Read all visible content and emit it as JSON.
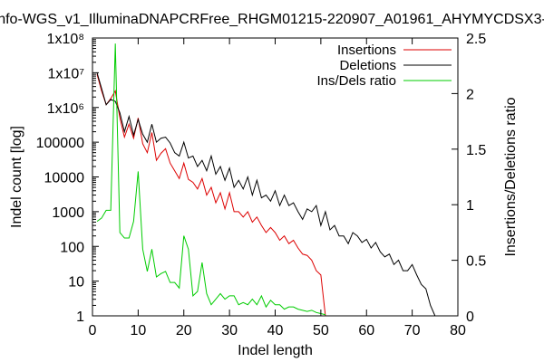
{
  "chart_data": {
    "type": "line",
    "title": "nfo-WGS_v1_IlluminaDNAPCRFree_RHGM01215-220907_A01961_AHYMYCDSX3-",
    "xlabel": "Indel length",
    "ylabel": "Indel count [log]",
    "y2label": "Insertions/Deletions ratio",
    "xlim": [
      0,
      80
    ],
    "ylim": [
      1,
      100000000
    ],
    "y2lim": [
      0,
      2.5
    ],
    "yscale": "log",
    "grid": false,
    "legend_position": "top-right",
    "x_ticks": [
      0,
      10,
      20,
      30,
      40,
      50,
      60,
      70,
      80
    ],
    "x_tick_labels": [
      "0",
      "10",
      "20",
      "30",
      "40",
      "50",
      "60",
      "70",
      "80"
    ],
    "y_ticks": [
      1,
      10,
      100,
      1000,
      10000,
      100000,
      1000000,
      10000000,
      100000000
    ],
    "y_tick_labels": [
      "1",
      "10",
      "100",
      "1000",
      "10000",
      "100000",
      "1x10⁶",
      "1x10⁷",
      "1x10⁸"
    ],
    "y2_ticks": [
      0,
      0.5,
      1,
      1.5,
      2,
      2.5
    ],
    "y2_tick_labels": [
      "0",
      "0.5",
      "1",
      "1.5",
      "2",
      "2.5"
    ],
    "series": [
      {
        "name": "Insertions",
        "axis": "left",
        "color": "#dd0000",
        "points": [
          [
            1,
            9000000
          ],
          [
            2,
            3000000
          ],
          [
            3,
            1200000
          ],
          [
            4,
            1800000
          ],
          [
            5,
            3000000
          ],
          [
            6,
            500000
          ],
          [
            7,
            140000
          ],
          [
            8,
            330000
          ],
          [
            9,
            130000
          ],
          [
            10,
            500000
          ],
          [
            11,
            90000
          ],
          [
            12,
            50000
          ],
          [
            13,
            190000
          ],
          [
            14,
            30000
          ],
          [
            15,
            48000
          ],
          [
            16,
            65000
          ],
          [
            17,
            25000
          ],
          [
            18,
            15000
          ],
          [
            19,
            9000
          ],
          [
            20,
            25000
          ],
          [
            21,
            8500
          ],
          [
            22,
            7000
          ],
          [
            23,
            4500
          ],
          [
            24,
            9000
          ],
          [
            25,
            3000
          ],
          [
            26,
            5000
          ],
          [
            27,
            1800
          ],
          [
            28,
            3500
          ],
          [
            29,
            1200
          ],
          [
            30,
            3500
          ],
          [
            31,
            1000
          ],
          [
            32,
            1000
          ],
          [
            33,
            700
          ],
          [
            34,
            1000
          ],
          [
            35,
            500
          ],
          [
            36,
            700
          ],
          [
            37,
            400
          ],
          [
            38,
            250
          ],
          [
            39,
            350
          ],
          [
            40,
            250
          ],
          [
            41,
            150
          ],
          [
            42,
            200
          ],
          [
            43,
            120
          ],
          [
            44,
            150
          ],
          [
            45,
            90
          ],
          [
            46,
            60
          ],
          [
            47,
            55
          ],
          [
            48,
            40
          ],
          [
            49,
            20
          ],
          [
            50,
            15
          ],
          [
            51,
            1
          ]
        ]
      },
      {
        "name": "Deletions",
        "axis": "left",
        "color": "#000000",
        "points": [
          [
            1,
            10000000
          ],
          [
            2,
            3500000
          ],
          [
            3,
            1200000
          ],
          [
            4,
            1700000
          ],
          [
            5,
            1500000
          ],
          [
            6,
            700000
          ],
          [
            7,
            200000
          ],
          [
            8,
            550000
          ],
          [
            9,
            160000
          ],
          [
            10,
            450000
          ],
          [
            11,
            170000
          ],
          [
            12,
            100000
          ],
          [
            13,
            330000
          ],
          [
            14,
            100000
          ],
          [
            15,
            130000
          ],
          [
            16,
            140000
          ],
          [
            17,
            95000
          ],
          [
            18,
            50000
          ],
          [
            19,
            40000
          ],
          [
            20,
            100000
          ],
          [
            21,
            35000
          ],
          [
            22,
            40000
          ],
          [
            23,
            20000
          ],
          [
            24,
            30000
          ],
          [
            25,
            15000
          ],
          [
            26,
            40000
          ],
          [
            27,
            12000
          ],
          [
            28,
            20000
          ],
          [
            29,
            8000
          ],
          [
            30,
            18000
          ],
          [
            31,
            5000
          ],
          [
            32,
            8000
          ],
          [
            33,
            4500
          ],
          [
            34,
            10000
          ],
          [
            35,
            3000
          ],
          [
            36,
            8000
          ],
          [
            37,
            2500
          ],
          [
            38,
            3000
          ],
          [
            39,
            2000
          ],
          [
            40,
            4000
          ],
          [
            41,
            1500
          ],
          [
            42,
            3000
          ],
          [
            43,
            1500
          ],
          [
            44,
            1800
          ],
          [
            45,
            1000
          ],
          [
            46,
            600
          ],
          [
            47,
            1200
          ],
          [
            48,
            1000
          ],
          [
            49,
            1500
          ],
          [
            50,
            400
          ],
          [
            51,
            1000
          ],
          [
            52,
            300
          ],
          [
            53,
            400
          ],
          [
            54,
            200
          ],
          [
            55,
            200
          ],
          [
            56,
            120
          ],
          [
            57,
            250
          ],
          [
            58,
            200
          ],
          [
            59,
            130
          ],
          [
            60,
            160
          ],
          [
            61,
            90
          ],
          [
            62,
            130
          ],
          [
            63,
            70
          ],
          [
            64,
            50
          ],
          [
            65,
            60
          ],
          [
            66,
            30
          ],
          [
            67,
            40
          ],
          [
            68,
            20
          ],
          [
            69,
            20
          ],
          [
            70,
            30
          ],
          [
            71,
            15
          ],
          [
            72,
            8
          ],
          [
            73,
            6
          ],
          [
            74,
            2
          ],
          [
            75,
            1
          ]
        ]
      },
      {
        "name": "Ins/Dels ratio",
        "axis": "right",
        "color": "#00cc00",
        "points": [
          [
            1,
            0.85
          ],
          [
            2,
            0.88
          ],
          [
            3,
            0.95
          ],
          [
            4,
            0.95
          ],
          [
            5,
            2.45
          ],
          [
            6,
            0.75
          ],
          [
            7,
            0.7
          ],
          [
            8,
            0.7
          ],
          [
            9,
            0.85
          ],
          [
            10,
            1.3
          ],
          [
            11,
            0.6
          ],
          [
            12,
            0.4
          ],
          [
            13,
            0.6
          ],
          [
            14,
            0.35
          ],
          [
            15,
            0.38
          ],
          [
            16,
            0.4
          ],
          [
            17,
            0.3
          ],
          [
            18,
            0.3
          ],
          [
            19,
            0.25
          ],
          [
            20,
            0.72
          ],
          [
            21,
            0.6
          ],
          [
            22,
            0.18
          ],
          [
            23,
            0.22
          ],
          [
            24,
            0.48
          ],
          [
            25,
            0.2
          ],
          [
            26,
            0.1
          ],
          [
            27,
            0.15
          ],
          [
            28,
            0.2
          ],
          [
            29,
            0.15
          ],
          [
            30,
            0.18
          ],
          [
            31,
            0.18
          ],
          [
            32,
            0.1
          ],
          [
            33,
            0.12
          ],
          [
            34,
            0.1
          ],
          [
            35,
            0.15
          ],
          [
            36,
            0.1
          ],
          [
            37,
            0.18
          ],
          [
            38,
            0.08
          ],
          [
            39,
            0.14
          ],
          [
            40,
            0.1
          ],
          [
            41,
            0.1
          ],
          [
            42,
            0.06
          ],
          [
            43,
            0.08
          ],
          [
            44,
            0.08
          ],
          [
            45,
            0.06
          ],
          [
            46,
            0.05
          ],
          [
            47,
            0.04
          ],
          [
            48,
            0.05
          ],
          [
            49,
            0.03
          ],
          [
            50,
            0.02
          ],
          [
            51,
            0.01
          ]
        ]
      }
    ]
  }
}
